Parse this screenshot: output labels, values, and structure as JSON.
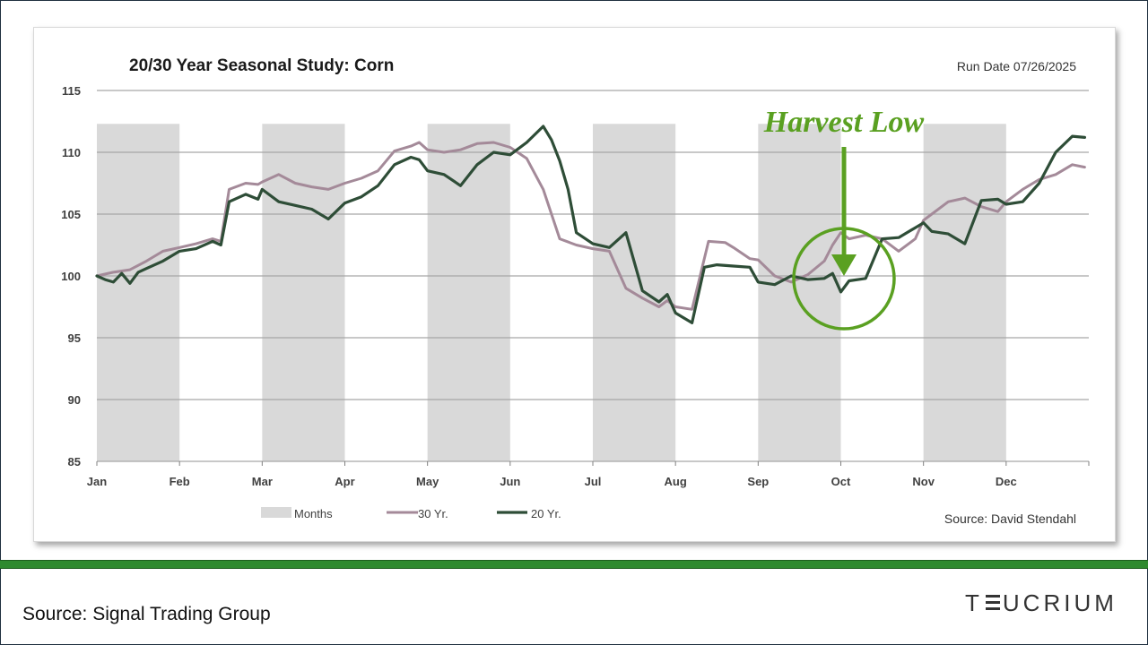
{
  "chart_data": {
    "type": "line",
    "title": "20/30 Year Seasonal Study: Corn",
    "run_date": "Run Date  07/26/2025",
    "source_note": "Source:  David Stendahl",
    "annotation": "Harvest Low",
    "xlabel": "",
    "ylabel": "",
    "ylim": [
      85,
      115
    ],
    "yticks": [
      85,
      90,
      95,
      100,
      105,
      110,
      115
    ],
    "grid": "horizontal",
    "legend_position": "bottom",
    "months": [
      "Jan",
      "Feb",
      "Mar",
      "Apr",
      "May",
      "Jun",
      "Jul",
      "Aug",
      "Sep",
      "Oct",
      "Nov",
      "Dec"
    ],
    "shaded_months": [
      "Jan",
      "Mar",
      "May",
      "Jul",
      "Sep",
      "Nov"
    ],
    "legend": [
      {
        "name": "Months",
        "kind": "box",
        "color": "#d9d9d9"
      },
      {
        "name": "30 Yr.",
        "kind": "line",
        "color": "#a48a99"
      },
      {
        "name": "20 Yr.",
        "kind": "line",
        "color": "#2e4d37"
      }
    ],
    "series": [
      {
        "name": "30 Yr.",
        "color": "#a48a99",
        "x": [
          0,
          0.2,
          0.4,
          0.6,
          0.8,
          1.0,
          1.2,
          1.4,
          1.5,
          1.6,
          1.8,
          1.95,
          2.0,
          2.2,
          2.4,
          2.6,
          2.8,
          3.0,
          3.2,
          3.4,
          3.6,
          3.8,
          3.9,
          4.0,
          4.2,
          4.4,
          4.6,
          4.8,
          5.0,
          5.2,
          5.4,
          5.6,
          5.8,
          6.0,
          6.2,
          6.4,
          6.6,
          6.8,
          6.9,
          7.0,
          7.2,
          7.4,
          7.6,
          7.7,
          7.9,
          8.0,
          8.2,
          8.4,
          8.6,
          8.8,
          8.9,
          9.0,
          9.1,
          9.3,
          9.5,
          9.7,
          9.9,
          10.0,
          10.1,
          10.3,
          10.5,
          10.7,
          10.9,
          11.0,
          11.2,
          11.4,
          11.6,
          11.8,
          11.95
        ],
        "y": [
          100.0,
          100.3,
          100.5,
          101.2,
          102.0,
          102.3,
          102.6,
          103.0,
          102.8,
          107.0,
          107.5,
          107.4,
          107.6,
          108.2,
          107.5,
          107.2,
          107.0,
          107.5,
          107.9,
          108.5,
          110.1,
          110.5,
          110.8,
          110.2,
          110.0,
          110.2,
          110.7,
          110.8,
          110.4,
          109.5,
          107.0,
          103.0,
          102.5,
          102.2,
          102.0,
          99.0,
          98.2,
          97.5,
          98.0,
          97.5,
          97.3,
          102.8,
          102.7,
          102.3,
          101.4,
          101.3,
          100.0,
          99.5,
          100.1,
          101.2,
          102.5,
          103.5,
          103.0,
          103.3,
          103.0,
          102.0,
          103.0,
          104.5,
          105.0,
          106.0,
          106.3,
          105.6,
          105.2,
          106.0,
          107.0,
          107.8,
          108.2,
          109.0,
          108.8
        ]
      },
      {
        "name": "20 Yr.",
        "color": "#2e4d37",
        "x": [
          0,
          0.1,
          0.2,
          0.3,
          0.4,
          0.5,
          0.6,
          0.8,
          1.0,
          1.2,
          1.4,
          1.5,
          1.6,
          1.8,
          1.95,
          2.0,
          2.2,
          2.4,
          2.6,
          2.8,
          3.0,
          3.2,
          3.4,
          3.6,
          3.8,
          3.9,
          4.0,
          4.2,
          4.4,
          4.6,
          4.8,
          5.0,
          5.2,
          5.4,
          5.5,
          5.6,
          5.7,
          5.8,
          6.0,
          6.2,
          6.4,
          6.6,
          6.8,
          6.9,
          7.0,
          7.2,
          7.35,
          7.5,
          7.7,
          7.9,
          8.0,
          8.2,
          8.4,
          8.6,
          8.8,
          8.9,
          9.0,
          9.1,
          9.3,
          9.5,
          9.7,
          9.9,
          10.0,
          10.1,
          10.3,
          10.5,
          10.7,
          10.9,
          11.0,
          11.2,
          11.4,
          11.6,
          11.8,
          11.95
        ],
        "y": [
          100.0,
          99.7,
          99.5,
          100.2,
          99.4,
          100.3,
          100.6,
          101.2,
          102.0,
          102.2,
          102.8,
          102.5,
          106.0,
          106.6,
          106.2,
          107.0,
          106.0,
          105.7,
          105.4,
          104.6,
          105.9,
          106.4,
          107.3,
          109.0,
          109.6,
          109.4,
          108.5,
          108.2,
          107.3,
          109.0,
          110.0,
          109.8,
          110.8,
          112.1,
          111.0,
          109.3,
          107.0,
          103.5,
          102.6,
          102.3,
          103.5,
          98.8,
          97.9,
          98.5,
          97.0,
          96.2,
          100.7,
          100.9,
          100.8,
          100.7,
          99.5,
          99.3,
          100.0,
          99.7,
          99.8,
          100.2,
          98.7,
          99.6,
          99.8,
          103.0,
          103.1,
          103.9,
          104.3,
          103.6,
          103.4,
          102.6,
          106.1,
          106.2,
          105.8,
          106.0,
          107.5,
          110.0,
          111.3,
          111.2
        ]
      }
    ]
  },
  "footer": {
    "source": "Source: Signal Trading Group",
    "brand": "TEUCRIUM"
  },
  "colors": {
    "accent_green": "#5aa021",
    "rule_green": "#2f8a2f",
    "shade": "#d9d9d9",
    "grid": "#a6a6a6"
  }
}
